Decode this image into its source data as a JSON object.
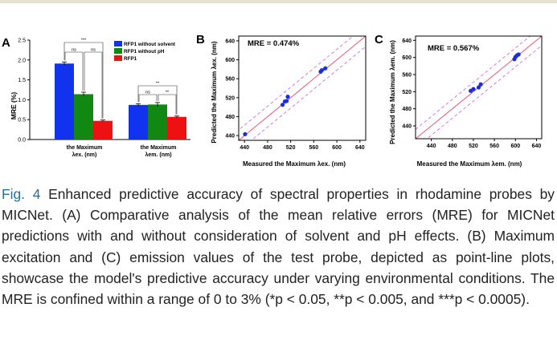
{
  "colors": {
    "blue": "#1133ee",
    "green": "#118811",
    "red": "#ee1111",
    "diag": "#e8557a",
    "band": "#d070d8",
    "point": "#1a2ee0"
  },
  "panel_a": {
    "label": "A",
    "ylabel": "MRE (%)",
    "legend": [
      "RFP1 without solvent",
      "RFP1 without pH",
      "RFP1"
    ],
    "ytick_labels": [
      "0.0",
      "0.5",
      "1.0",
      "1.5",
      "2.0",
      "2.5"
    ],
    "sig_labels": [
      "***",
      "ns",
      "ns",
      "**",
      "ns",
      "**"
    ],
    "group1_label": [
      "the Maximum",
      "λex. (nm)"
    ],
    "group2_label": [
      "the Maximum",
      "λem. (nm)"
    ]
  },
  "panel_b": {
    "label": "B",
    "mre": "MRE = 0.474%",
    "xlabel": "Measured the Maximum λex. (nm)",
    "ylabel": "Predicted the Maximum λex. (nm)",
    "xtick_labels": [
      "440",
      "480",
      "520",
      "560",
      "600",
      "640"
    ],
    "ytick_labels": [
      "440",
      "480",
      "520",
      "560",
      "600",
      "640"
    ]
  },
  "panel_c": {
    "label": "C",
    "mre": "MRE = 0.567%",
    "xlabel": "Measured the Maximum λem. (nm)",
    "ylabel": "Predicted the Maximum λem. (nm)",
    "xtick_labels": [
      "440",
      "480",
      "520",
      "560",
      "600",
      "640"
    ],
    "ytick_labels": [
      "440",
      "480",
      "520",
      "560",
      "600",
      "640"
    ]
  },
  "chart_data": [
    {
      "type": "bar",
      "panel": "A",
      "ylabel": "MRE (%)",
      "ylim": [
        0,
        2.5
      ],
      "categories": [
        "the Maximum λex. (nm)",
        "the Maximum λem. (nm)"
      ],
      "series": [
        {
          "name": "RFP1 without solvent",
          "values": [
            1.91,
            0.87
          ],
          "errors": [
            0.04,
            0.03
          ]
        },
        {
          "name": "RFP1 without pH",
          "values": [
            1.14,
            0.88
          ],
          "errors": [
            0.05,
            0.05
          ]
        },
        {
          "name": "RFP1",
          "values": [
            0.47,
            0.57
          ],
          "errors": [
            0.02,
            0.02
          ]
        }
      ]
    },
    {
      "type": "scatter",
      "panel": "B",
      "title": "MRE = 0.474%",
      "xlabel": "Measured the Maximum λex. (nm)",
      "ylabel": "Predicted the Maximum λex. (nm)",
      "xlim": [
        430,
        650
      ],
      "ylim": [
        430,
        650
      ],
      "x": [
        441,
        506,
        510,
        513,
        515,
        572,
        574,
        580
      ],
      "y": [
        443,
        505,
        512,
        513,
        522,
        575,
        578,
        582
      ]
    },
    {
      "type": "scatter",
      "panel": "C",
      "title": "MRE = 0.567%",
      "xlabel": "Measured the Maximum λem. (nm)",
      "ylabel": "Predicted the Maximum λem. (nm)",
      "xlim": [
        410,
        650
      ],
      "ylim": [
        410,
        650
      ],
      "x": [
        515,
        520,
        530,
        534,
        598,
        600,
        603,
        606
      ],
      "y": [
        522,
        526,
        530,
        537,
        596,
        601,
        605,
        607
      ]
    }
  ],
  "caption": {
    "label": "Fig. 4",
    "text": " Enhanced predictive accuracy of spectral properties in rhodamine probes by MICNet. (A) Comparative analysis of the mean relative errors (MRE) for MICNet predictions with and without consideration of solvent and pH effects. (B) Maximum excitation and (C) emission values of the test probe, depicted as point-line plots, showcase the model's predictive accuracy under varying environmental conditions. The MRE is confined within a range of 0 to 3% (*p < 0.05, **p < 0.005, and ***p < 0.0005)."
  }
}
